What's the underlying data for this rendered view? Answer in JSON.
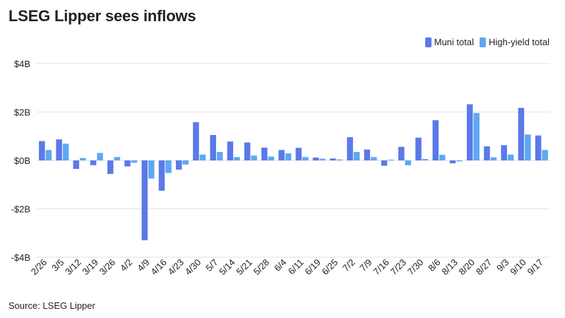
{
  "title": "LSEG Lipper sees inflows",
  "source": "Source: LSEG Lipper",
  "colors": {
    "muni": "#5b79e8",
    "high_yield": "#5ea8f3",
    "grid": "#e2e2e2"
  },
  "legend": {
    "muni_label": "Muni total",
    "high_yield_label": "High-yield total",
    "placement": "top-right"
  },
  "chart_data": {
    "type": "bar",
    "title": "LSEG Lipper sees inflows",
    "xlabel": "",
    "ylabel": "",
    "ylim": [
      -4,
      4
    ],
    "grid": true,
    "y_ticks": [
      {
        "value": 4,
        "label": "$4B"
      },
      {
        "value": 2,
        "label": "$2B"
      },
      {
        "value": 0,
        "label": "$0B"
      },
      {
        "value": -2,
        "label": "-$2B"
      },
      {
        "value": -4,
        "label": "-$4B"
      }
    ],
    "categories": [
      "2/26",
      "3/5",
      "3/12",
      "3/19",
      "3/26",
      "4/2",
      "4/9",
      "4/16",
      "4/23",
      "4/30",
      "5/7",
      "5/14",
      "5/21",
      "5/28",
      "6/4",
      "6/11",
      "6/19",
      "6/25",
      "7/2",
      "7/9",
      "7/16",
      "7/23",
      "7/30",
      "8/6",
      "8/13",
      "8/20",
      "8/27",
      "9/3",
      "9/10",
      "9/17"
    ],
    "series": [
      {
        "name": "Muni total",
        "values": [
          0.8,
          0.87,
          -0.35,
          -0.2,
          -0.56,
          -0.25,
          -3.3,
          -1.25,
          -0.38,
          1.58,
          1.05,
          0.78,
          0.74,
          0.53,
          0.43,
          0.52,
          0.12,
          0.08,
          0.96,
          0.45,
          -0.22,
          0.56,
          0.94,
          1.66,
          -0.12,
          2.32,
          0.58,
          0.63,
          2.17,
          1.03
        ]
      },
      {
        "name": "High-yield total",
        "values": [
          0.43,
          0.69,
          0.1,
          0.31,
          0.14,
          -0.1,
          -0.75,
          -0.52,
          -0.17,
          0.24,
          0.35,
          0.14,
          0.2,
          0.16,
          0.29,
          0.14,
          0.07,
          0.04,
          0.35,
          0.14,
          0.03,
          -0.2,
          0.06,
          0.23,
          -0.04,
          1.96,
          0.13,
          0.24,
          1.07,
          0.43
        ]
      }
    ]
  }
}
